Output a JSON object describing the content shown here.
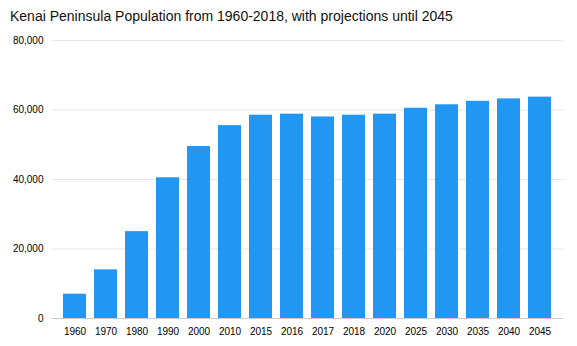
{
  "chart_data": {
    "type": "bar",
    "title": "Kenai Peninsula Population from 1960-2018, with projections until 2045",
    "categories": [
      "1960",
      "1970",
      "1980",
      "1990",
      "2000",
      "2010",
      "2015",
      "2016",
      "2017",
      "2018",
      "2020",
      "2025",
      "2030",
      "2035",
      "2040",
      "2045"
    ],
    "values": [
      7000,
      14000,
      25000,
      40500,
      49500,
      55500,
      58500,
      58800,
      58000,
      58500,
      58800,
      60500,
      61500,
      62500,
      63200,
      63700
    ],
    "color": "#2196F3",
    "ylim": [
      0,
      80000
    ],
    "yticks": [
      0,
      {
        "value": 20000,
        "label": "20,000"
      },
      {
        "value": 40000,
        "label": "40,000"
      },
      {
        "value": 60000,
        "label": "60,000"
      },
      {
        "value": 80000,
        "label": "80,000"
      }
    ],
    "grid": true
  }
}
